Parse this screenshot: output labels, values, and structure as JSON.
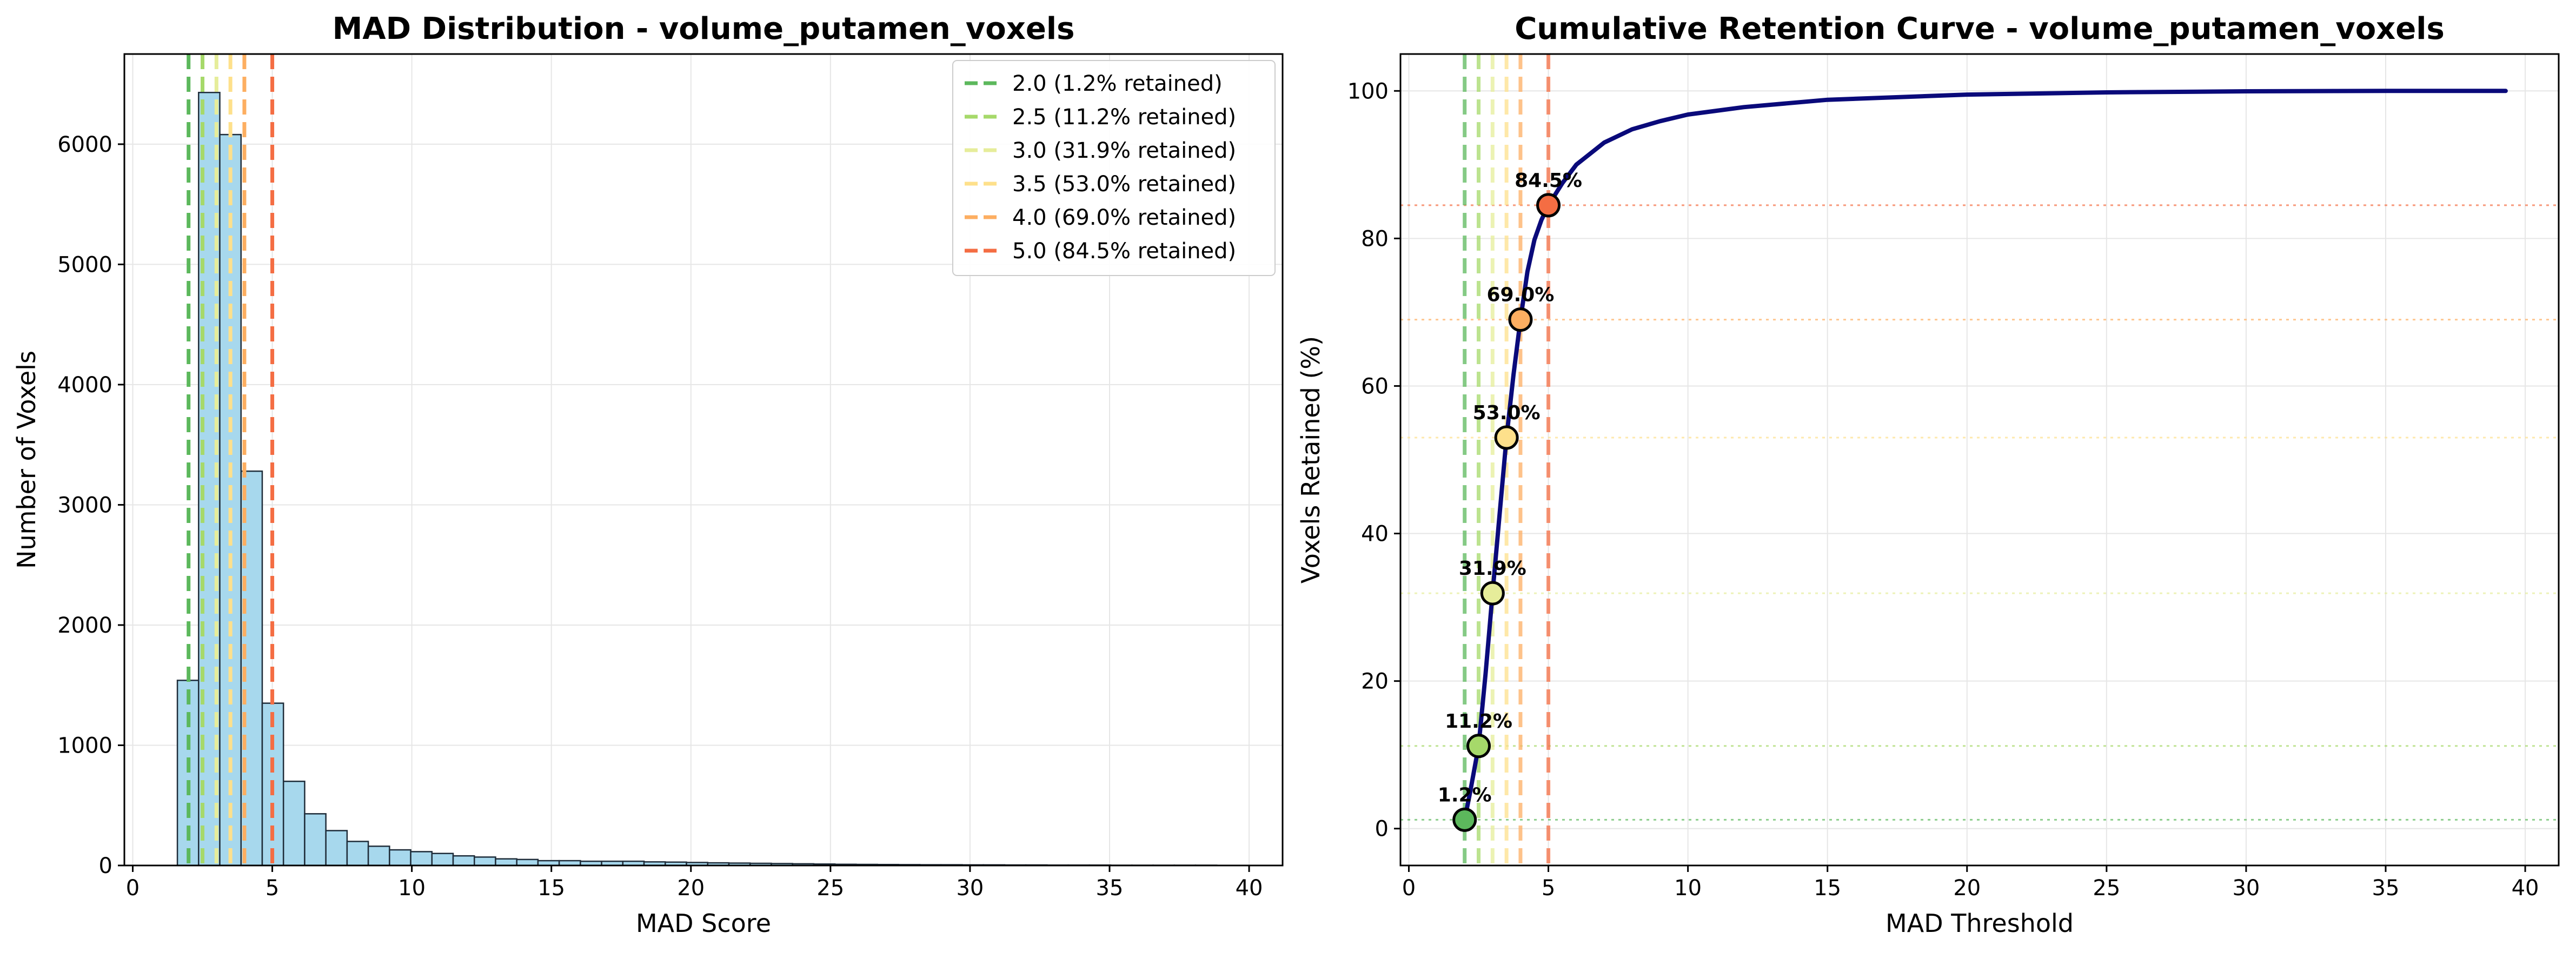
{
  "chart_data": [
    {
      "type": "bar",
      "title": "MAD Distribution - volume_putamen_voxels",
      "xlabel": "MAD Score",
      "ylabel": "Number of Voxels",
      "xlim": [
        -0.3,
        41.2
      ],
      "ylim": [
        0,
        6750
      ],
      "xticks": [
        0,
        5,
        10,
        15,
        20,
        25,
        30,
        35,
        40
      ],
      "yticks": [
        0,
        1000,
        2000,
        3000,
        4000,
        5000,
        6000
      ],
      "grid": true,
      "legend_position": "upper-right",
      "bin_width": 0.76,
      "bin_start": 1.6,
      "bar_color": "#a7d8ed",
      "bar_edge_color": "#1f2d3a",
      "values": [
        1540,
        6430,
        6080,
        3280,
        1350,
        700,
        430,
        290,
        200,
        160,
        130,
        115,
        100,
        80,
        70,
        55,
        50,
        40,
        40,
        35,
        35,
        35,
        30,
        28,
        25,
        22,
        20,
        18,
        16,
        14,
        12,
        10,
        9,
        8,
        7,
        6,
        6,
        5,
        5,
        4,
        4,
        3,
        3,
        3,
        2,
        2,
        2,
        2,
        2,
        1
      ],
      "thresholds": [
        {
          "x": 2.0,
          "label": "2.0 (1.2% retained)",
          "color": "#5cb85c"
        },
        {
          "x": 2.5,
          "label": "2.5 (11.2% retained)",
          "color": "#a6d96a"
        },
        {
          "x": 3.0,
          "label": "3.0 (31.9% retained)",
          "color": "#e6ed9a"
        },
        {
          "x": 3.5,
          "label": "3.5 (53.0% retained)",
          "color": "#fee08b"
        },
        {
          "x": 4.0,
          "label": "4.0 (69.0% retained)",
          "color": "#fdae61"
        },
        {
          "x": 5.0,
          "label": "5.0 (84.5% retained)",
          "color": "#f46d43"
        }
      ]
    },
    {
      "type": "line",
      "title": "Cumulative Retention Curve - volume_putamen_voxels",
      "xlabel": "MAD Threshold",
      "ylabel": "Voxels Retained (%)",
      "xlim": [
        -0.3,
        41.2
      ],
      "ylim": [
        -5,
        105
      ],
      "xticks": [
        0,
        5,
        10,
        15,
        20,
        25,
        30,
        35,
        40
      ],
      "yticks": [
        0,
        20,
        40,
        60,
        80,
        100
      ],
      "grid": true,
      "line_color": "#0a0a7a",
      "x": [
        2.0,
        2.2,
        2.5,
        2.75,
        3.0,
        3.25,
        3.5,
        3.75,
        4.0,
        4.25,
        4.5,
        4.75,
        5.0,
        5.5,
        6.0,
        7.0,
        8.0,
        9.0,
        10.0,
        12.0,
        15.0,
        20.0,
        25.0,
        30.0,
        35.0,
        39.3
      ],
      "y": [
        1.2,
        5.0,
        11.2,
        21.0,
        31.9,
        42.5,
        53.0,
        61.5,
        69.0,
        75.5,
        79.8,
        82.5,
        84.5,
        87.5,
        90.0,
        93.0,
        94.8,
        95.9,
        96.8,
        97.8,
        98.8,
        99.5,
        99.8,
        99.95,
        100.0,
        100.0
      ],
      "points": [
        {
          "x": 2.0,
          "y": 1.2,
          "label": "1.2%",
          "color": "#5cb85c"
        },
        {
          "x": 2.5,
          "y": 11.2,
          "label": "11.2%",
          "color": "#a6d96a"
        },
        {
          "x": 3.0,
          "y": 31.9,
          "label": "31.9%",
          "color": "#e6ed9a"
        },
        {
          "x": 3.5,
          "y": 53.0,
          "label": "53.0%",
          "color": "#fee08b"
        },
        {
          "x": 4.0,
          "y": 69.0,
          "label": "69.0%",
          "color": "#fdae61"
        },
        {
          "x": 5.0,
          "y": 84.5,
          "label": "84.5%",
          "color": "#f46d43"
        }
      ]
    }
  ]
}
